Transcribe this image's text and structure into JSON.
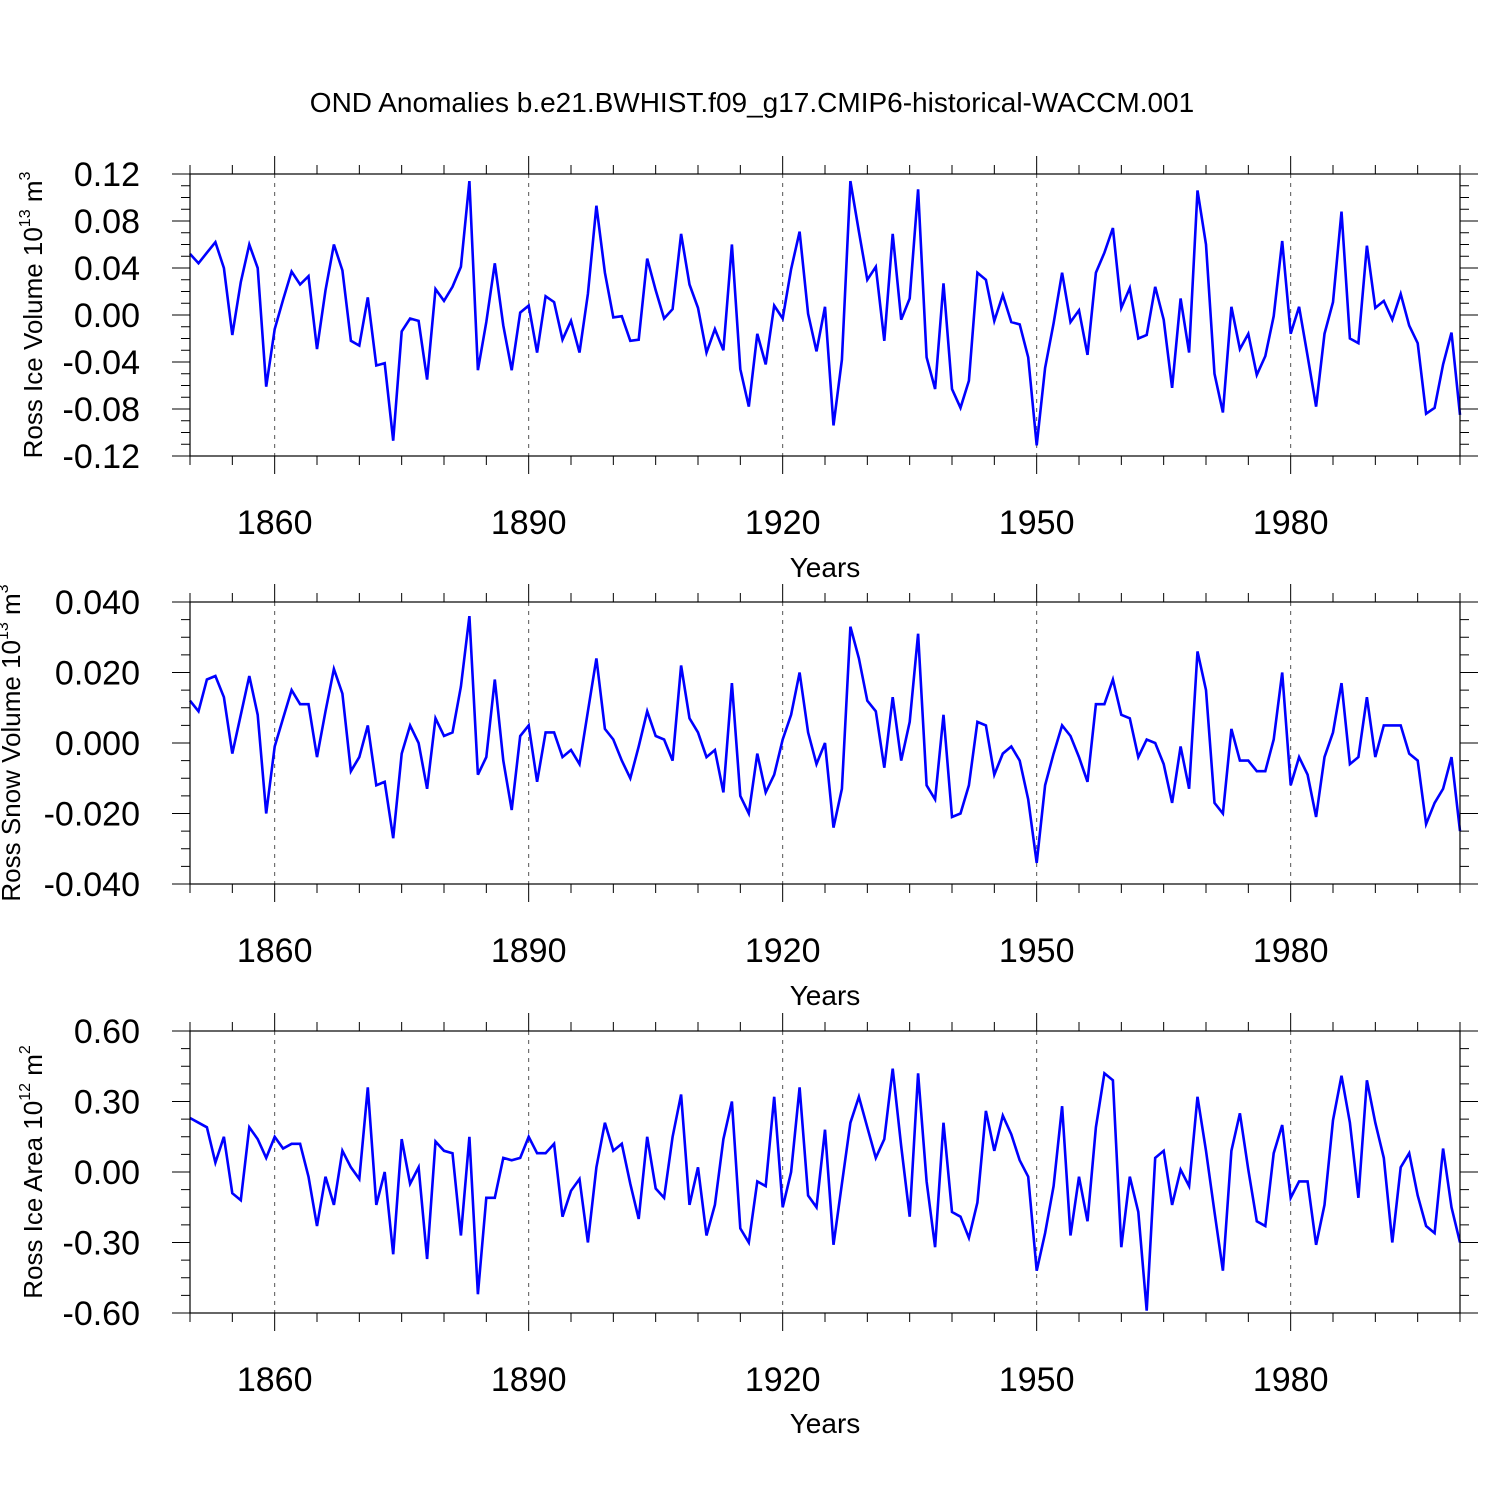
{
  "chart_data": [
    {
      "type": "line",
      "title": "OND Anomalies b.e21.BWHIST.f09_g17.CMIP6-historical-WACCM.001",
      "xlabel": "Years",
      "ylabel": {
        "text": "Ross Ice Volume 10",
        "exp": "13",
        "unit": " m",
        "unit_exp": "3"
      },
      "xlim": [
        1850,
        2000
      ],
      "ylim": [
        -0.12,
        0.12
      ],
      "xticks": [
        1860,
        1890,
        1920,
        1950,
        1980
      ],
      "xtick_labels": [
        "1860",
        "1890",
        "1920",
        "1950",
        "1980"
      ],
      "yticks": [
        -0.12,
        -0.08,
        -0.04,
        0.0,
        0.04,
        0.08,
        0.12
      ],
      "ytick_labels": [
        "-0.12",
        "-0.08",
        "-0.04",
        "0.00",
        "0.04",
        "0.08",
        "0.12"
      ],
      "color": "#0000ff",
      "x_start": 1850,
      "values": [
        0.052,
        0.044,
        0.053,
        0.062,
        0.04,
        -0.017,
        0.028,
        0.06,
        0.04,
        -0.061,
        -0.012,
        0.013,
        0.037,
        0.026,
        0.033,
        -0.029,
        0.021,
        0.06,
        0.038,
        -0.022,
        -0.026,
        0.015,
        -0.043,
        -0.041,
        -0.107,
        -0.014,
        -0.003,
        -0.005,
        -0.055,
        0.022,
        0.012,
        0.024,
        0.041,
        0.114,
        -0.047,
        -0.006,
        0.044,
        -0.009,
        -0.047,
        0.002,
        0.008,
        -0.032,
        0.016,
        0.011,
        -0.021,
        -0.005,
        -0.032,
        0.018,
        0.093,
        0.036,
        -0.002,
        -0.001,
        -0.022,
        -0.021,
        0.048,
        0.021,
        -0.003,
        0.005,
        0.069,
        0.026,
        0.006,
        -0.032,
        -0.012,
        -0.03,
        0.06,
        -0.046,
        -0.078,
        -0.016,
        -0.042,
        0.008,
        -0.003,
        0.039,
        0.071,
        0.001,
        -0.031,
        0.007,
        -0.094,
        -0.038,
        0.114,
        0.071,
        0.03,
        0.041,
        -0.022,
        0.069,
        -0.004,
        0.014,
        0.107,
        -0.036,
        -0.063,
        0.027,
        -0.063,
        -0.079,
        -0.056,
        0.036,
        0.03,
        -0.005,
        0.017,
        -0.006,
        -0.008,
        -0.036,
        -0.111,
        -0.045,
        -0.007,
        0.036,
        -0.006,
        0.004,
        -0.034,
        0.036,
        0.053,
        0.074,
        0.006,
        0.023,
        -0.02,
        -0.017,
        0.024,
        -0.004,
        -0.062,
        0.014,
        -0.032,
        0.106,
        0.06,
        -0.05,
        -0.083,
        0.007,
        -0.029,
        -0.016,
        -0.051,
        -0.035,
        -0.001,
        0.063,
        -0.016,
        0.007,
        -0.035,
        -0.078,
        -0.016,
        0.011,
        0.088,
        -0.02,
        -0.024,
        0.059,
        0.006,
        0.012,
        -0.004,
        0.018,
        -0.009,
        -0.024,
        -0.084,
        -0.079,
        -0.042,
        -0.015,
        -0.085
      ]
    },
    {
      "type": "line",
      "xlabel": "Years",
      "ylabel": {
        "text": "Ross Snow Volume 10",
        "exp": "13",
        "unit": " m",
        "unit_exp": "3"
      },
      "xlim": [
        1850,
        2000
      ],
      "ylim": [
        -0.04,
        0.04
      ],
      "xticks": [
        1860,
        1890,
        1920,
        1950,
        1980
      ],
      "xtick_labels": [
        "1860",
        "1890",
        "1920",
        "1950",
        "1980"
      ],
      "yticks": [
        -0.04,
        -0.02,
        0.0,
        0.02,
        0.04
      ],
      "ytick_labels": [
        "-0.040",
        "-0.020",
        "0.000",
        "0.020",
        "0.040"
      ],
      "color": "#0000ff",
      "x_start": 1850,
      "values": [
        0.012,
        0.009,
        0.018,
        0.019,
        0.013,
        -0.003,
        0.008,
        0.019,
        0.008,
        -0.02,
        -0.001,
        0.007,
        0.015,
        0.011,
        0.011,
        -0.004,
        0.009,
        0.021,
        0.014,
        -0.008,
        -0.004,
        0.005,
        -0.012,
        -0.011,
        -0.027,
        -0.003,
        0.005,
        0.0,
        -0.013,
        0.007,
        0.002,
        0.003,
        0.016,
        0.036,
        -0.009,
        -0.004,
        0.018,
        -0.005,
        -0.019,
        0.002,
        0.005,
        -0.011,
        0.003,
        0.003,
        -0.004,
        -0.002,
        -0.006,
        0.009,
        0.024,
        0.004,
        0.001,
        -0.005,
        -0.01,
        -0.001,
        0.009,
        0.002,
        0.001,
        -0.005,
        0.022,
        0.007,
        0.003,
        -0.004,
        -0.002,
        -0.014,
        0.017,
        -0.015,
        -0.02,
        -0.003,
        -0.014,
        -0.009,
        0.001,
        0.008,
        0.02,
        0.003,
        -0.006,
        0.0,
        -0.024,
        -0.013,
        0.033,
        0.024,
        0.012,
        0.009,
        -0.007,
        0.013,
        -0.005,
        0.006,
        0.031,
        -0.012,
        -0.016,
        0.008,
        -0.021,
        -0.02,
        -0.012,
        0.006,
        0.005,
        -0.009,
        -0.003,
        -0.001,
        -0.005,
        -0.016,
        -0.034,
        -0.012,
        -0.003,
        0.005,
        0.002,
        -0.004,
        -0.011,
        0.011,
        0.011,
        0.018,
        0.008,
        0.007,
        -0.004,
        0.001,
        0.0,
        -0.006,
        -0.017,
        -0.001,
        -0.013,
        0.026,
        0.015,
        -0.017,
        -0.02,
        0.004,
        -0.005,
        -0.005,
        -0.008,
        -0.008,
        0.001,
        0.02,
        -0.012,
        -0.004,
        -0.009,
        -0.021,
        -0.004,
        0.003,
        0.017,
        -0.006,
        -0.004,
        0.013,
        -0.004,
        0.005,
        0.005,
        0.005,
        -0.003,
        -0.005,
        -0.023,
        -0.017,
        -0.013,
        -0.004,
        -0.025
      ]
    },
    {
      "type": "line",
      "xlabel": "Years",
      "ylabel": {
        "text": "Ross Ice Area 10",
        "exp": "12",
        "unit": " m",
        "unit_exp": "2"
      },
      "xlim": [
        1850,
        2000
      ],
      "ylim": [
        -0.6,
        0.6
      ],
      "xticks": [
        1860,
        1890,
        1920,
        1950,
        1980
      ],
      "xtick_labels": [
        "1860",
        "1890",
        "1920",
        "1950",
        "1980"
      ],
      "yticks": [
        -0.6,
        -0.3,
        0.0,
        0.3,
        0.6
      ],
      "ytick_labels": [
        "-0.60",
        "-0.30",
        "0.00",
        "0.30",
        "0.60"
      ],
      "color": "#0000ff",
      "x_start": 1850,
      "values": [
        0.23,
        0.21,
        0.19,
        0.04,
        0.15,
        -0.09,
        -0.12,
        0.19,
        0.14,
        0.06,
        0.15,
        0.1,
        0.12,
        0.12,
        -0.02,
        -0.23,
        -0.02,
        -0.14,
        0.09,
        0.02,
        -0.03,
        0.36,
        -0.14,
        0.0,
        -0.35,
        0.14,
        -0.05,
        0.02,
        -0.37,
        0.13,
        0.09,
        0.08,
        -0.27,
        0.15,
        -0.52,
        -0.11,
        -0.11,
        0.06,
        0.05,
        0.06,
        0.15,
        0.08,
        0.08,
        0.12,
        -0.19,
        -0.08,
        -0.03,
        -0.3,
        0.02,
        0.21,
        0.09,
        0.12,
        -0.05,
        -0.2,
        0.15,
        -0.07,
        -0.11,
        0.15,
        0.33,
        -0.14,
        0.02,
        -0.27,
        -0.14,
        0.14,
        0.3,
        -0.24,
        -0.3,
        -0.04,
        -0.06,
        0.32,
        -0.15,
        0.0,
        0.36,
        -0.1,
        -0.15,
        0.18,
        -0.31,
        -0.05,
        0.21,
        0.32,
        0.19,
        0.06,
        0.14,
        0.44,
        0.11,
        -0.19,
        0.42,
        -0.04,
        -0.32,
        0.21,
        -0.17,
        -0.19,
        -0.28,
        -0.13,
        0.26,
        0.09,
        0.24,
        0.16,
        0.05,
        -0.02,
        -0.42,
        -0.26,
        -0.06,
        0.28,
        -0.27,
        -0.02,
        -0.21,
        0.19,
        0.42,
        0.39,
        -0.32,
        -0.02,
        -0.17,
        -0.59,
        0.06,
        0.09,
        -0.14,
        0.01,
        -0.06,
        0.32,
        0.09,
        -0.17,
        -0.42,
        0.09,
        0.25,
        0.01,
        -0.21,
        -0.23,
        0.08,
        0.2,
        -0.11,
        -0.04,
        -0.04,
        -0.31,
        -0.14,
        0.22,
        0.41,
        0.21,
        -0.11,
        0.39,
        0.21,
        0.06,
        -0.3,
        0.02,
        0.08,
        -0.1,
        -0.23,
        -0.26,
        0.1,
        -0.15,
        -0.3
      ]
    }
  ]
}
